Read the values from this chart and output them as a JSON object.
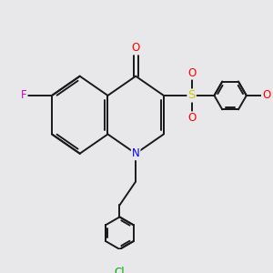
{
  "bg_color": "#e8e8ea",
  "bond_color": "#1a1a1a",
  "line_width": 1.4,
  "atom_labels": {
    "F": {
      "color": "#cc00cc",
      "fontsize": 8.5
    },
    "N": {
      "color": "#0000ff",
      "fontsize": 8.5
    },
    "O": {
      "color": "#ff0000",
      "fontsize": 8.5
    },
    "S": {
      "color": "#cccc00",
      "fontsize": 9.5
    },
    "Cl": {
      "color": "#00aa00",
      "fontsize": 8.5
    }
  }
}
